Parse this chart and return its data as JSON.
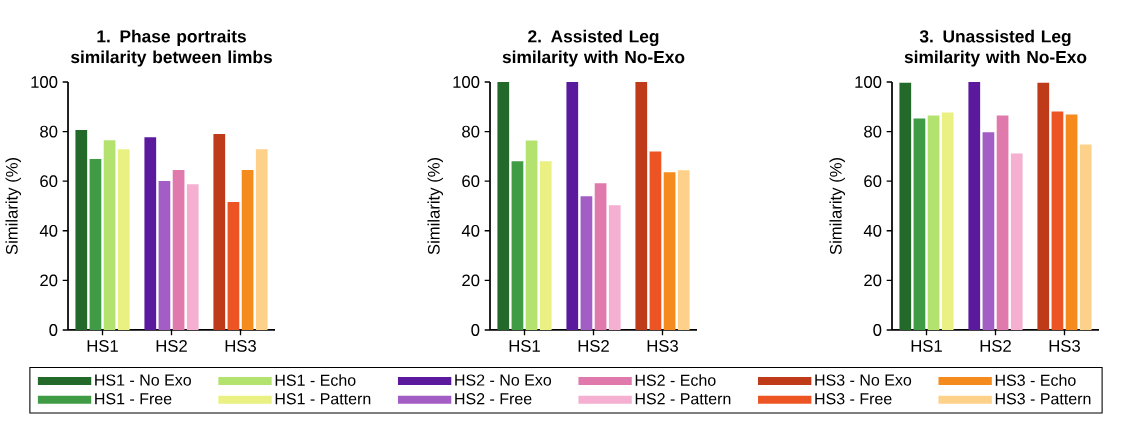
{
  "chart_data": [
    {
      "type": "bar",
      "title": "1. Phase portraits similarity between limbs",
      "ylabel": "Similarity (%)",
      "categories": [
        "HS1",
        "HS2",
        "HS3"
      ],
      "ylim": [
        0,
        100
      ],
      "yticks": [
        0,
        20,
        40,
        60,
        80,
        100
      ],
      "legend": "bottom",
      "series": [
        {
          "name": "HS1 - No Exo",
          "color": "#236a2a",
          "values": [
            80.6,
            null,
            null
          ]
        },
        {
          "name": "HS1 - Free",
          "color": "#3f9b44",
          "values": [
            68.9,
            null,
            null
          ]
        },
        {
          "name": "HS1 - Echo",
          "color": "#b3e26e",
          "values": [
            76.5,
            null,
            null
          ]
        },
        {
          "name": "HS1 - Pattern",
          "color": "#eaf081",
          "values": [
            72.9,
            null,
            null
          ]
        },
        {
          "name": "HS2 - No Exo",
          "color": "#5b1a9e",
          "values": [
            null,
            77.7,
            null
          ]
        },
        {
          "name": "HS2 - Free",
          "color": "#a35ec6",
          "values": [
            null,
            60.1,
            null
          ]
        },
        {
          "name": "HS2 - Echo",
          "color": "#e07aad",
          "values": [
            null,
            64.5,
            null
          ]
        },
        {
          "name": "HS2 - Pattern",
          "color": "#f4afd1",
          "values": [
            null,
            58.8,
            null
          ]
        },
        {
          "name": "HS3 - No Exo",
          "color": "#bf3a18",
          "values": [
            null,
            null,
            79.0
          ]
        },
        {
          "name": "HS3 - Free",
          "color": "#ec5523",
          "values": [
            null,
            null,
            51.6
          ]
        },
        {
          "name": "HS3 - Echo",
          "color": "#f58b1c",
          "values": [
            null,
            null,
            64.5
          ]
        },
        {
          "name": "HS3 - Pattern",
          "color": "#fdd18a",
          "values": [
            null,
            null,
            72.9
          ]
        }
      ]
    },
    {
      "type": "bar",
      "title": "2. Assisted Leg similarity with No-Exo",
      "ylabel": "Similarity (%)",
      "categories": [
        "HS1",
        "HS2",
        "HS3"
      ],
      "ylim": [
        0,
        100
      ],
      "yticks": [
        0,
        20,
        40,
        60,
        80,
        100
      ],
      "series": [
        {
          "color": "#236a2a",
          "values": [
            100,
            null,
            null
          ]
        },
        {
          "color": "#3f9b44",
          "values": [
            68.0,
            null,
            null
          ]
        },
        {
          "color": "#b3e26e",
          "values": [
            76.4,
            null,
            null
          ]
        },
        {
          "color": "#eaf081",
          "values": [
            68.0,
            null,
            null
          ]
        },
        {
          "color": "#5b1a9e",
          "values": [
            null,
            100,
            null
          ]
        },
        {
          "color": "#a35ec6",
          "values": [
            null,
            53.9,
            null
          ]
        },
        {
          "color": "#e07aad",
          "values": [
            null,
            59.2,
            null
          ]
        },
        {
          "color": "#f4afd1",
          "values": [
            null,
            50.3,
            null
          ]
        },
        {
          "color": "#bf3a18",
          "values": [
            null,
            null,
            100
          ]
        },
        {
          "color": "#ec5523",
          "values": [
            null,
            null,
            72.0
          ]
        },
        {
          "color": "#f58b1c",
          "values": [
            null,
            null,
            63.6
          ]
        },
        {
          "color": "#fdd18a",
          "values": [
            null,
            null,
            64.4
          ]
        }
      ]
    },
    {
      "type": "bar",
      "title": "3. Unassisted Leg similarity with No-Exo",
      "ylabel": "Similarity (%)",
      "categories": [
        "HS1",
        "HS2",
        "HS3"
      ],
      "ylim": [
        0,
        100
      ],
      "yticks": [
        0,
        20,
        40,
        60,
        80,
        100
      ],
      "series": [
        {
          "color": "#236a2a",
          "values": [
            99.7,
            null,
            null
          ]
        },
        {
          "color": "#3f9b44",
          "values": [
            85.3,
            null,
            null
          ]
        },
        {
          "color": "#b3e26e",
          "values": [
            86.5,
            null,
            null
          ]
        },
        {
          "color": "#eaf081",
          "values": [
            87.7,
            null,
            null
          ]
        },
        {
          "color": "#5b1a9e",
          "values": [
            null,
            100,
            null
          ]
        },
        {
          "color": "#a35ec6",
          "values": [
            null,
            79.7,
            null
          ]
        },
        {
          "color": "#e07aad",
          "values": [
            null,
            86.5,
            null
          ]
        },
        {
          "color": "#f4afd1",
          "values": [
            null,
            71.2,
            null
          ]
        },
        {
          "color": "#bf3a18",
          "values": [
            null,
            null,
            99.7
          ]
        },
        {
          "color": "#ec5523",
          "values": [
            null,
            null,
            88.1
          ]
        },
        {
          "color": "#f58b1c",
          "values": [
            null,
            null,
            86.9
          ]
        },
        {
          "color": "#fdd18a",
          "values": [
            null,
            null,
            74.8
          ]
        }
      ]
    }
  ]
}
